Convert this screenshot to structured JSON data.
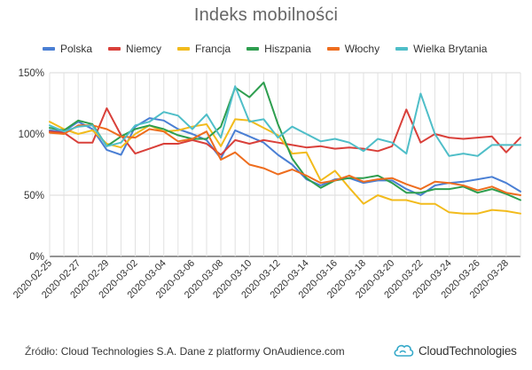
{
  "chart_data": {
    "type": "line",
    "title": "Indeks mobilności",
    "xlabel": "",
    "ylabel": "",
    "ylim": [
      0,
      150
    ],
    "y_ticks": [
      "0%",
      "50%",
      "100%",
      "150%"
    ],
    "y_tick_values": [
      0,
      50,
      100,
      150
    ],
    "grid": true,
    "legend_position": "top",
    "x": [
      "2020-02-25",
      "2020-02-26",
      "2020-02-27",
      "2020-02-28",
      "2020-02-29",
      "2020-03-01",
      "2020-03-02",
      "2020-03-03",
      "2020-03-04",
      "2020-03-05",
      "2020-03-06",
      "2020-03-07",
      "2020-03-08",
      "2020-03-09",
      "2020-03-10",
      "2020-03-11",
      "2020-03-12",
      "2020-03-13",
      "2020-03-14",
      "2020-03-15",
      "2020-03-16",
      "2020-03-17",
      "2020-03-18",
      "2020-03-19",
      "2020-03-20",
      "2020-03-21",
      "2020-03-22",
      "2020-03-23",
      "2020-03-24",
      "2020-03-25",
      "2020-03-26",
      "2020-03-27",
      "2020-03-28",
      "2020-03-29"
    ],
    "x_tick_labels": [
      "2020-02-25",
      "2020-02-27",
      "2020-02-29",
      "2020-03-02",
      "2020-03-04",
      "2020-03-06",
      "2020-03-08",
      "2020-03-10",
      "2020-03-12",
      "2020-03-14",
      "2020-03-16",
      "2020-03-18",
      "2020-03-20",
      "2020-03-22",
      "2020-03-24",
      "2020-03-26",
      "2020-03-28"
    ],
    "series": [
      {
        "name": "Polska",
        "color": "#4a7fd4",
        "values": [
          103,
          102,
          110,
          104,
          87,
          83,
          106,
          113,
          111,
          104,
          100,
          95,
          80,
          103,
          98,
          93,
          83,
          75,
          63,
          58,
          63,
          64,
          60,
          62,
          62,
          55,
          50,
          58,
          60,
          61,
          63,
          65,
          60,
          53
        ]
      },
      {
        "name": "Niemcy",
        "color": "#d9403a",
        "values": [
          102,
          101,
          93,
          93,
          121,
          99,
          84,
          88,
          92,
          92,
          95,
          92,
          83,
          95,
          92,
          95,
          93,
          91,
          89,
          90,
          88,
          89,
          88,
          86,
          90,
          120,
          93,
          100,
          97,
          96,
          97,
          98,
          85,
          97
        ]
      },
      {
        "name": "Francja",
        "color": "#f2bb1c",
        "values": [
          110,
          104,
          100,
          103,
          92,
          89,
          100,
          107,
          102,
          103,
          106,
          108,
          90,
          112,
          111,
          105,
          99,
          84,
          85,
          62,
          70,
          56,
          43,
          50,
          46,
          46,
          43,
          43,
          36,
          35,
          35,
          38,
          37,
          35
        ]
      },
      {
        "name": "Hiszpania",
        "color": "#2e9e4f",
        "values": [
          105,
          103,
          111,
          108,
          90,
          98,
          104,
          107,
          104,
          99,
          96,
          96,
          106,
          138,
          130,
          142,
          108,
          80,
          64,
          56,
          62,
          64,
          64,
          66,
          60,
          52,
          52,
          55,
          55,
          57,
          52,
          55,
          51,
          46
        ]
      },
      {
        "name": "Włochy",
        "color": "#ee6d1e",
        "values": [
          101,
          100,
          107,
          107,
          104,
          98,
          97,
          104,
          102,
          94,
          96,
          102,
          79,
          85,
          75,
          72,
          67,
          71,
          66,
          60,
          62,
          66,
          61,
          63,
          64,
          59,
          55,
          61,
          60,
          58,
          54,
          57,
          52,
          50
        ]
      },
      {
        "name": "Wielka Brytania",
        "color": "#4fbec8",
        "values": [
          107,
          102,
          106,
          107,
          90,
          93,
          107,
          110,
          118,
          115,
          104,
          116,
          97,
          139,
          110,
          112,
          97,
          106,
          100,
          94,
          96,
          93,
          86,
          96,
          93,
          84,
          133,
          100,
          82,
          84,
          82,
          91,
          91,
          91
        ]
      }
    ]
  },
  "footer": {
    "source_label": "Źródło:",
    "source_text": "Cloud Technologies S.A. Dane z platformy OnAudience.com"
  },
  "logo": {
    "name": "CloudTechnologies",
    "color": "#35a9c9"
  }
}
